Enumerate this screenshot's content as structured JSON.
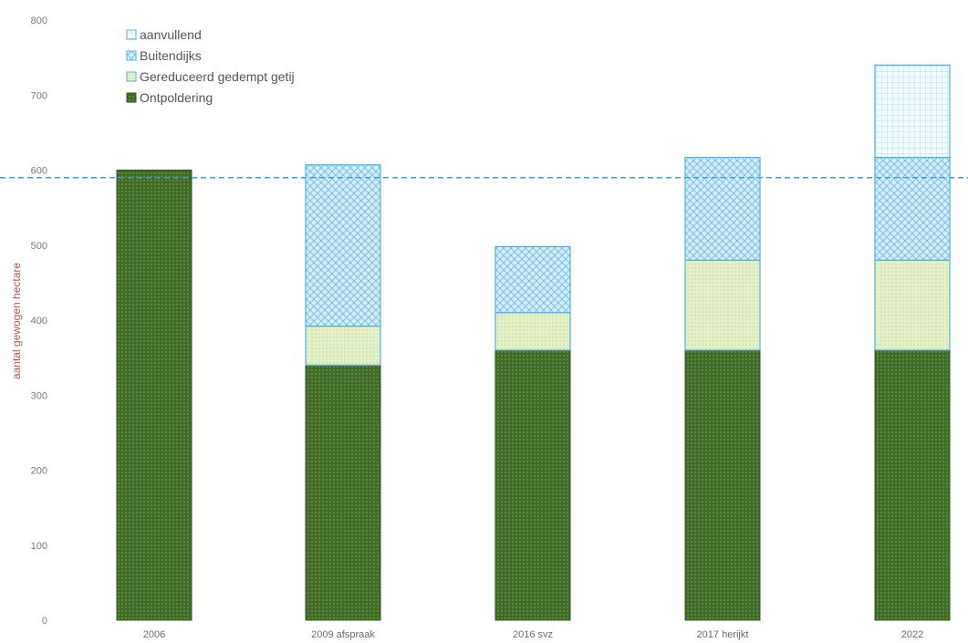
{
  "chart_data": {
    "type": "bar",
    "stacked": true,
    "categories": [
      "2006",
      "2009 afspraak",
      "2016 svz",
      "2017 herijkt",
      "2022"
    ],
    "ylabel": "aantal gewogen hectare",
    "ylim": [
      0,
      800
    ],
    "yticks": [
      0,
      100,
      200,
      300,
      400,
      500,
      600,
      700,
      800
    ],
    "grid": false,
    "legend_position": "top-left",
    "series": [
      {
        "name": "Ontpoldering",
        "values": [
          600,
          340,
          360,
          360,
          360
        ],
        "color": "#3f6b24"
      },
      {
        "name": "Gereduceerd gedempt getij",
        "values": [
          0,
          52,
          50,
          120,
          120
        ],
        "color": "#d9ebb5"
      },
      {
        "name": "Buitendijks",
        "values": [
          0,
          215,
          88,
          137,
          137
        ],
        "color": "#bfe3f5"
      },
      {
        "name": "aanvullend",
        "values": [
          0,
          0,
          0,
          0,
          123
        ],
        "color": "#eaf6fc"
      }
    ],
    "reference_line": {
      "value": 590,
      "color": "#3aa0d8"
    }
  }
}
